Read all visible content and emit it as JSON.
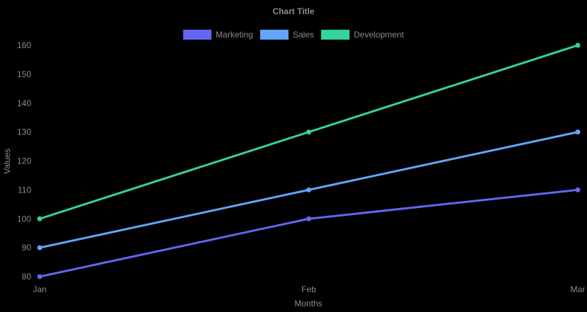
{
  "chart_data": {
    "type": "line",
    "title": "Chart Title",
    "xlabel": "Months",
    "ylabel": "Values",
    "categories": [
      "Jan",
      "Feb",
      "Mar"
    ],
    "ylim": [
      80,
      160
    ],
    "yticks": [
      80,
      90,
      100,
      110,
      120,
      130,
      140,
      150,
      160
    ],
    "grid": false,
    "legend_position": "top",
    "series": [
      {
        "name": "Marketing",
        "values": [
          80,
          100,
          110
        ],
        "color": "#6366f1"
      },
      {
        "name": "Sales",
        "values": [
          90,
          110,
          130
        ],
        "color": "#60a5fa"
      },
      {
        "name": "Development",
        "values": [
          100,
          130,
          160
        ],
        "color": "#34d399"
      }
    ]
  }
}
